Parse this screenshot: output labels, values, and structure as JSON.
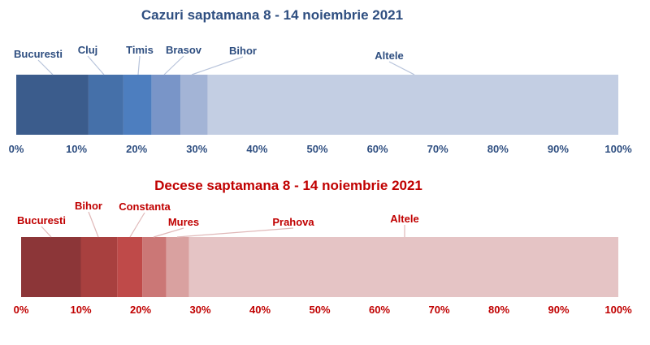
{
  "chart_data": [
    {
      "type": "bar",
      "orientation": "horizontal-stacked-percent",
      "title": "Cazuri saptamana 8 - 14 noiembrie 2021",
      "title_color": "#2E4E80",
      "label_color": "#2E4E80",
      "xlim": [
        0,
        100
      ],
      "ticks": [
        "0%",
        "10%",
        "20%",
        "30%",
        "40%",
        "50%",
        "60%",
        "70%",
        "80%",
        "90%",
        "100%"
      ],
      "segments": [
        {
          "name": "Bucuresti",
          "value": 12.0,
          "color": "#3B5C8C"
        },
        {
          "name": "Cluj",
          "value": 5.8,
          "color": "#4570A9"
        },
        {
          "name": "Timis",
          "value": 4.7,
          "color": "#4D7EBF"
        },
        {
          "name": "Brasov",
          "value": 4.8,
          "color": "#7995C8"
        },
        {
          "name": "Bihor",
          "value": 4.5,
          "color": "#A3B4D6"
        },
        {
          "name": "Altele",
          "value": 68.2,
          "color": "#C3CEE3"
        }
      ]
    },
    {
      "type": "bar",
      "orientation": "horizontal-stacked-percent",
      "title": "Decese saptamana 8 - 14 noiembrie 2021",
      "title_color": "#C00000",
      "label_color": "#C00000",
      "xlim": [
        0,
        100
      ],
      "ticks": [
        "0%",
        "10%",
        "20%",
        "30%",
        "40%",
        "50%",
        "60%",
        "70%",
        "80%",
        "90%",
        "100%"
      ],
      "segments": [
        {
          "name": "Bucuresti",
          "value": 10.0,
          "color": "#8C3638"
        },
        {
          "name": "Bihor",
          "value": 6.1,
          "color": "#A8403F"
        },
        {
          "name": "Constanta",
          "value": 4.2,
          "color": "#BF4A49"
        },
        {
          "name": "Mures",
          "value": 4.0,
          "color": "#CB7776"
        },
        {
          "name": "Prahova",
          "value": 3.8,
          "color": "#D9A1A0"
        },
        {
          "name": "Altele",
          "value": 71.9,
          "color": "#E5C4C5"
        }
      ]
    }
  ]
}
